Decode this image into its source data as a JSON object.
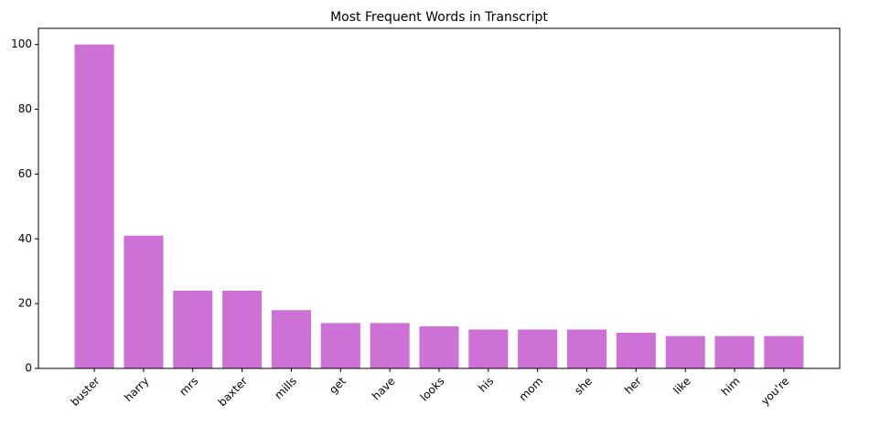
{
  "chart_data": {
    "type": "bar",
    "title": "Most Frequent Words in Transcript",
    "categories": [
      "buster",
      "harry",
      "mrs",
      "baxter",
      "mills",
      "get",
      "have",
      "looks",
      "his",
      "mom",
      "she",
      "her",
      "like",
      "him",
      "you're"
    ],
    "values": [
      100,
      41,
      24,
      24,
      18,
      14,
      14,
      13,
      12,
      12,
      12,
      11,
      10,
      10,
      10
    ],
    "color": "#cd71d6",
    "ylim": [
      0,
      105
    ],
    "yticks": [
      0,
      20,
      40,
      60,
      80,
      100
    ],
    "grid": false
  }
}
